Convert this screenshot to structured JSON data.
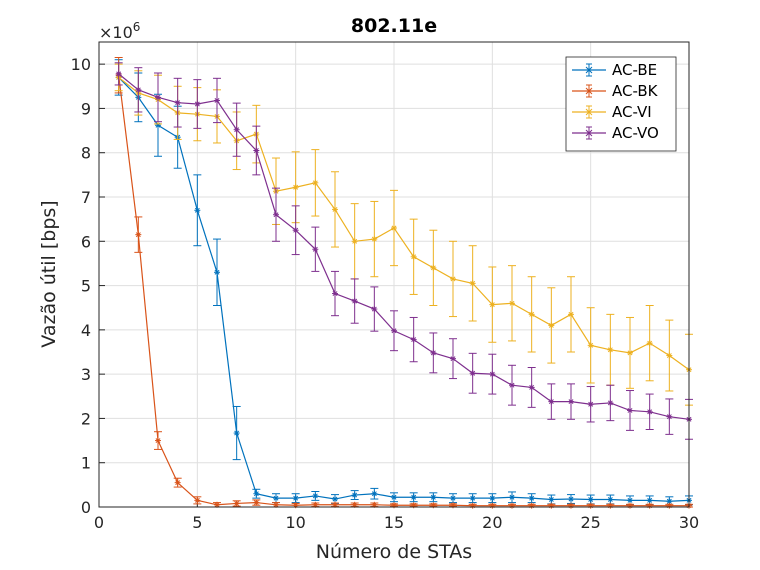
{
  "chart_data": {
    "type": "line",
    "title": "802.11e",
    "xlabel": "Número de STAs",
    "ylabel": "Vazão útil [bps]",
    "y_exponent_label": "×10",
    "y_exponent_power": "6",
    "xlim": [
      0,
      30
    ],
    "ylim": [
      0,
      10.5
    ],
    "xticks": [
      0,
      5,
      10,
      15,
      20,
      25,
      30
    ],
    "yticks": [
      0,
      1,
      2,
      3,
      4,
      5,
      6,
      7,
      8,
      9,
      10
    ],
    "grid": true,
    "legend_position": "top-right",
    "x": [
      1,
      2,
      3,
      4,
      5,
      6,
      7,
      8,
      9,
      10,
      11,
      12,
      13,
      14,
      15,
      16,
      17,
      18,
      19,
      20,
      21,
      22,
      23,
      24,
      25,
      26,
      27,
      28,
      29,
      30
    ],
    "series": [
      {
        "name": "AC-BE",
        "color": "#0072BD",
        "values": [
          9.7,
          9.25,
          8.62,
          8.35,
          6.7,
          5.3,
          1.67,
          0.3,
          0.2,
          0.2,
          0.25,
          0.18,
          0.27,
          0.3,
          0.22,
          0.22,
          0.22,
          0.2,
          0.2,
          0.2,
          0.22,
          0.2,
          0.17,
          0.18,
          0.17,
          0.17,
          0.15,
          0.15,
          0.13,
          0.15
        ],
        "errors": [
          0.4,
          0.55,
          0.7,
          0.7,
          0.8,
          0.75,
          0.6,
          0.1,
          0.1,
          0.1,
          0.1,
          0.1,
          0.1,
          0.12,
          0.1,
          0.1,
          0.1,
          0.1,
          0.1,
          0.1,
          0.12,
          0.1,
          0.1,
          0.1,
          0.1,
          0.1,
          0.1,
          0.1,
          0.1,
          0.1
        ]
      },
      {
        "name": "AC-BK",
        "color": "#D95319",
        "values": [
          9.75,
          6.15,
          1.5,
          0.55,
          0.15,
          0.05,
          0.08,
          0.1,
          0.05,
          0.04,
          0.05,
          0.05,
          0.05,
          0.05,
          0.04,
          0.04,
          0.04,
          0.04,
          0.03,
          0.03,
          0.03,
          0.03,
          0.03,
          0.03,
          0.03,
          0.03,
          0.03,
          0.03,
          0.03,
          0.03
        ],
        "errors": [
          0.4,
          0.4,
          0.2,
          0.1,
          0.08,
          0.05,
          0.06,
          0.06,
          0.05,
          0.04,
          0.04,
          0.04,
          0.04,
          0.04,
          0.03,
          0.03,
          0.03,
          0.03,
          0.03,
          0.03,
          0.03,
          0.03,
          0.03,
          0.03,
          0.03,
          0.03,
          0.03,
          0.03,
          0.03,
          0.03
        ]
      },
      {
        "name": "AC-VI",
        "color": "#EDB120",
        "values": [
          9.7,
          9.35,
          9.2,
          8.9,
          8.87,
          8.82,
          8.27,
          8.42,
          7.13,
          7.22,
          7.32,
          6.72,
          6.0,
          6.05,
          6.3,
          5.65,
          5.4,
          5.15,
          5.05,
          4.57,
          4.6,
          4.35,
          4.1,
          4.35,
          3.65,
          3.55,
          3.48,
          3.7,
          3.42,
          3.1
        ],
        "errors": [
          0.3,
          0.5,
          0.55,
          0.6,
          0.6,
          0.6,
          0.65,
          0.65,
          0.75,
          0.8,
          0.75,
          0.85,
          0.85,
          0.85,
          0.85,
          0.85,
          0.85,
          0.85,
          0.85,
          0.85,
          0.85,
          0.85,
          0.85,
          0.85,
          0.85,
          0.8,
          0.8,
          0.85,
          0.8,
          0.8
        ]
      },
      {
        "name": "AC-VO",
        "color": "#7E2F8E",
        "values": [
          9.78,
          9.42,
          9.25,
          9.13,
          9.1,
          9.18,
          8.52,
          8.05,
          6.6,
          6.25,
          5.82,
          4.82,
          4.65,
          4.47,
          3.98,
          3.78,
          3.48,
          3.35,
          3.02,
          3.0,
          2.75,
          2.7,
          2.38,
          2.38,
          2.32,
          2.35,
          2.18,
          2.15,
          2.04,
          1.98
        ],
        "errors": [
          0.25,
          0.5,
          0.55,
          0.55,
          0.55,
          0.5,
          0.6,
          0.55,
          0.6,
          0.55,
          0.5,
          0.5,
          0.5,
          0.5,
          0.45,
          0.5,
          0.45,
          0.45,
          0.45,
          0.45,
          0.45,
          0.45,
          0.4,
          0.4,
          0.4,
          0.4,
          0.45,
          0.4,
          0.4,
          0.45
        ]
      }
    ]
  }
}
